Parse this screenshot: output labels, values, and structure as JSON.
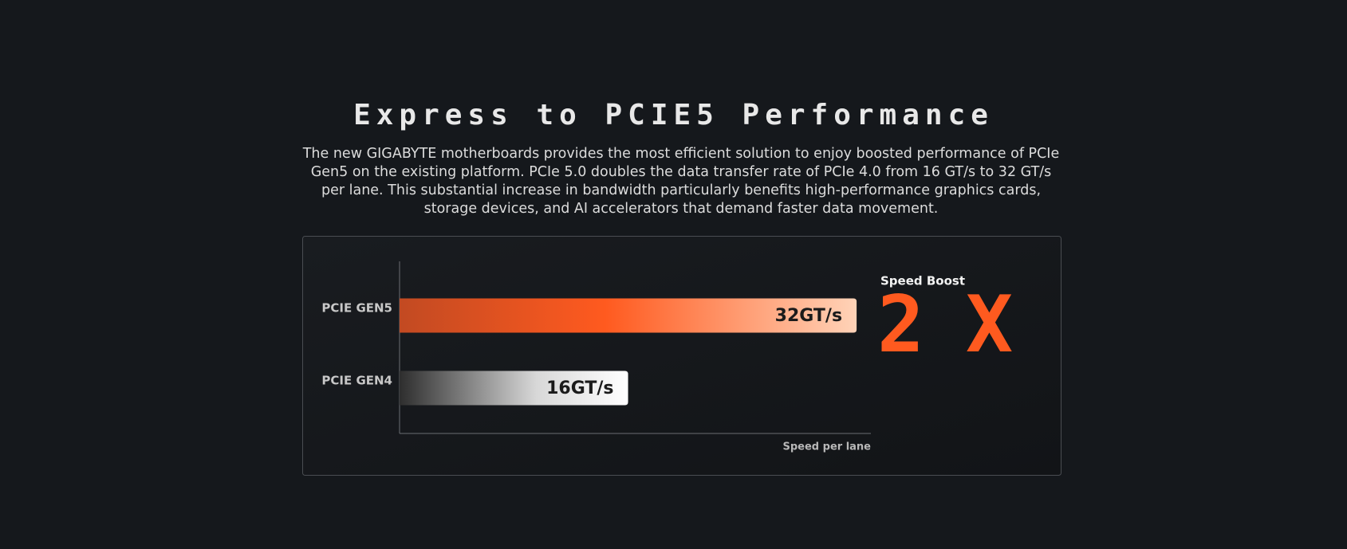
{
  "header": {
    "title": "Express to PCIE5 Performance",
    "description": "The new GIGABYTE motherboards provides the most efficient solution to enjoy boosted performance of PCIe Gen5 on the existing platform. PCIe 5.0 doubles the data transfer rate of PCIe 4.0 from 16 GT/s to 32 GT/s per lane. This substantial increase in bandwidth particularly benefits high-performance graphics cards, storage devices, and AI accelerators that demand faster data movement."
  },
  "chart_data": {
    "type": "bar",
    "orientation": "horizontal",
    "categories": [
      "PCIE GEN5",
      "PCIE GEN4"
    ],
    "values": [
      32,
      16
    ],
    "value_labels": [
      "32GT/s",
      "16GT/s"
    ],
    "xlabel": "Speed per lane",
    "xlim": [
      0,
      33
    ]
  },
  "callout": {
    "label": "Speed Boost",
    "value": "2X"
  }
}
